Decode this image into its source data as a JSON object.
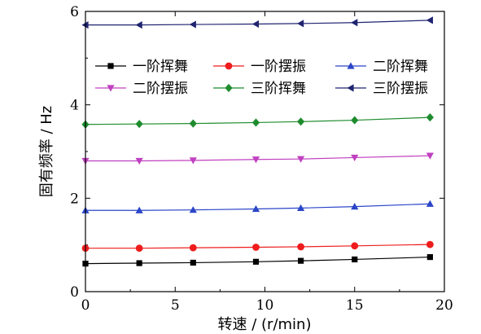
{
  "chart_data": {
    "type": "line",
    "xlabel": "转速 / (r/min)",
    "ylabel": "固有频率 / Hz",
    "xlim": [
      0,
      20
    ],
    "ylim": [
      0,
      6
    ],
    "xticks": [
      0,
      5,
      10,
      15,
      20
    ],
    "yticks": [
      0,
      2,
      4,
      6
    ],
    "legend_position": "top-center",
    "series": [
      {
        "name": "一阶挥舞",
        "color": "#000000",
        "marker": "square",
        "x": [
          0,
          3,
          6,
          9.5,
          12,
          15,
          19.2
        ],
        "y": [
          0.6,
          0.61,
          0.62,
          0.64,
          0.66,
          0.69,
          0.74
        ]
      },
      {
        "name": "一阶摆振",
        "color": "#ee1c1c",
        "marker": "circle",
        "x": [
          0,
          3,
          6,
          9.5,
          12,
          15,
          19.2
        ],
        "y": [
          0.93,
          0.93,
          0.94,
          0.95,
          0.96,
          0.98,
          1.01
        ]
      },
      {
        "name": "二阶挥舞",
        "color": "#2a45c8",
        "marker": "triangle-up",
        "x": [
          0,
          3,
          6,
          9.5,
          12,
          15,
          19.2
        ],
        "y": [
          1.74,
          1.74,
          1.75,
          1.77,
          1.79,
          1.82,
          1.88
        ]
      },
      {
        "name": "二阶摆振",
        "color": "#c040c0",
        "marker": "triangle-down",
        "x": [
          0,
          3,
          6,
          9.5,
          12,
          15,
          19.2
        ],
        "y": [
          2.8,
          2.8,
          2.81,
          2.83,
          2.84,
          2.87,
          2.91
        ]
      },
      {
        "name": "三阶挥舞",
        "color": "#1e8c2e",
        "marker": "diamond",
        "x": [
          0,
          3,
          6,
          9.5,
          12,
          15,
          19.2
        ],
        "y": [
          3.58,
          3.59,
          3.6,
          3.62,
          3.64,
          3.67,
          3.73
        ]
      },
      {
        "name": "三阶摆振",
        "color": "#1f2470",
        "marker": "triangle-left",
        "x": [
          0,
          3,
          6,
          9.5,
          12,
          15,
          19.2
        ],
        "y": [
          5.71,
          5.71,
          5.72,
          5.73,
          5.74,
          5.76,
          5.81
        ]
      }
    ]
  }
}
